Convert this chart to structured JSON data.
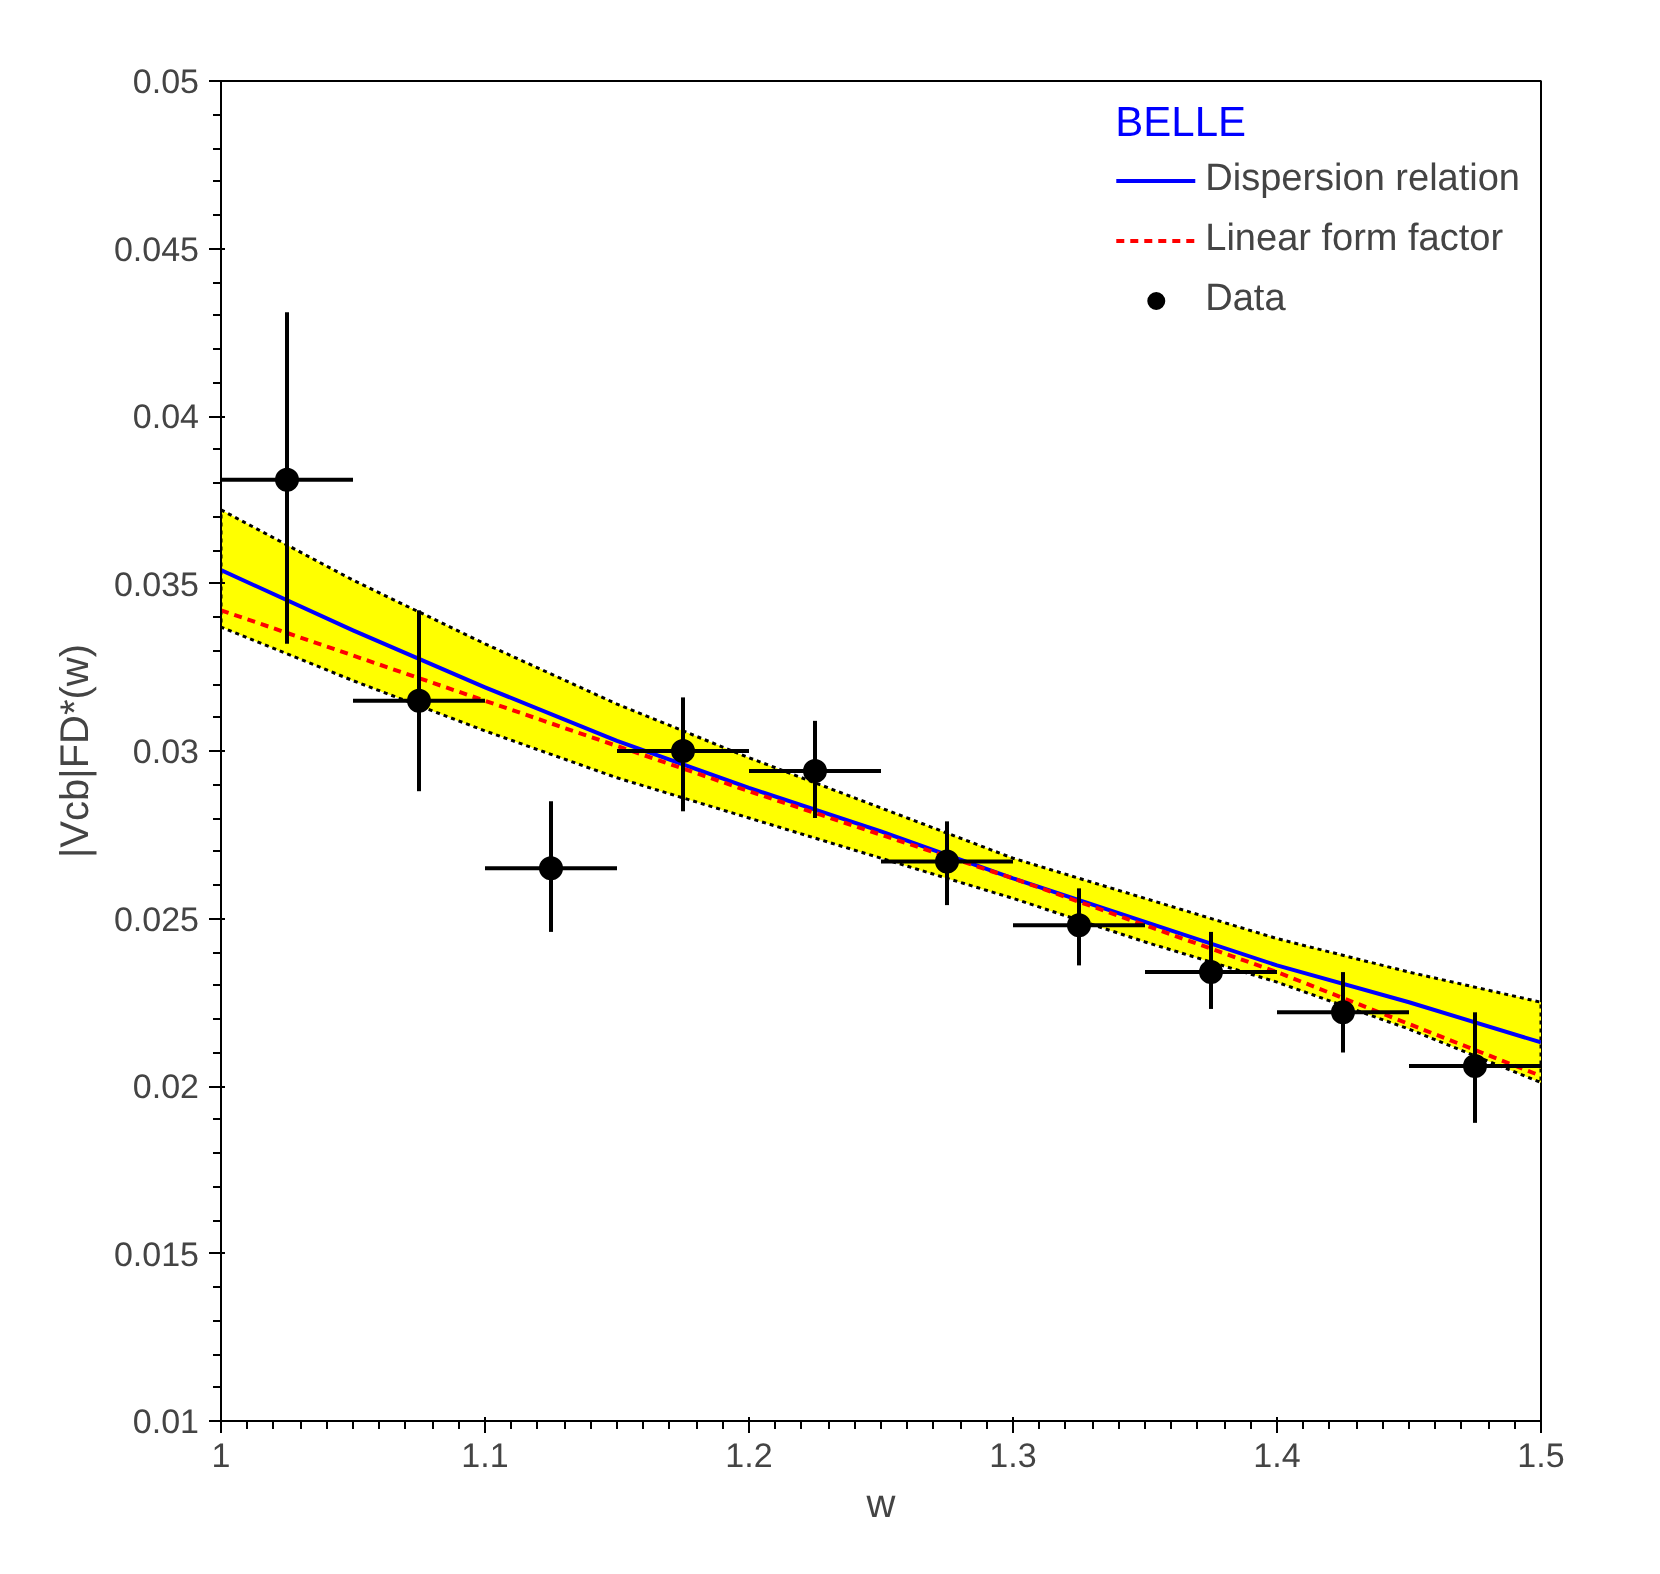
{
  "chart_data": {
    "type": "line",
    "xlabel": "w",
    "ylabel": "|Vcb|FD*(w)",
    "legend_title": "BELLE",
    "xlim": [
      1,
      1.5
    ],
    "ylim": [
      0.01,
      0.05
    ],
    "xticks": [
      1,
      1.1,
      1.2,
      1.3,
      1.4,
      1.5
    ],
    "yticks": [
      0.01,
      0.015,
      0.02,
      0.025,
      0.03,
      0.035,
      0.04,
      0.045,
      0.05
    ],
    "grid": false,
    "legend": "top right",
    "series": [
      {
        "name": "Dispersion relation",
        "line_style": "solid",
        "color": "#0000ff",
        "x": [
          1.0,
          1.05,
          1.1,
          1.15,
          1.2,
          1.25,
          1.3,
          1.35,
          1.4,
          1.45,
          1.5
        ],
        "values": [
          0.0354,
          0.0336,
          0.0319,
          0.0303,
          0.0289,
          0.0276,
          0.0262,
          0.0249,
          0.0236,
          0.0225,
          0.0213
        ],
        "lower": [
          0.0337,
          0.0321,
          0.0306,
          0.0292,
          0.028,
          0.0268,
          0.0256,
          0.0243,
          0.0231,
          0.0217,
          0.0201
        ],
        "upper": [
          0.0372,
          0.0351,
          0.0332,
          0.0314,
          0.0298,
          0.0283,
          0.0268,
          0.0256,
          0.0244,
          0.0234,
          0.0225
        ]
      },
      {
        "name": "Linear form factor",
        "line_style": "dashed",
        "color": "#ff0000",
        "x": [
          1.0,
          1.1,
          1.2,
          1.3,
          1.4,
          1.5
        ],
        "values": [
          0.0342,
          0.0315,
          0.0288,
          0.0262,
          0.0234,
          0.0203
        ]
      },
      {
        "name": "Data",
        "type": "scatter",
        "marker": "circle",
        "color": "#000000",
        "x": [
          1.025,
          1.075,
          1.125,
          1.175,
          1.225,
          1.275,
          1.325,
          1.375,
          1.425,
          1.475
        ],
        "values": [
          0.0381,
          0.0315,
          0.0265,
          0.03,
          0.0294,
          0.0267,
          0.0248,
          0.0234,
          0.0222,
          0.0206
        ],
        "errors": [
          [
            0.0332,
            0.0431
          ],
          [
            0.0288,
            0.0342
          ],
          [
            0.0246,
            0.0285
          ],
          [
            0.0282,
            0.0316
          ],
          [
            0.028,
            0.0309
          ],
          [
            0.0254,
            0.0279
          ],
          [
            0.0236,
            0.0259
          ],
          [
            0.0223,
            0.0246
          ],
          [
            0.021,
            0.0234
          ],
          [
            0.0189,
            0.0222
          ]
        ],
        "xerrors": [
          0.025,
          0.025,
          0.025,
          0.025,
          0.025,
          0.025,
          0.025,
          0.025,
          0.025,
          0.025
        ]
      }
    ]
  }
}
